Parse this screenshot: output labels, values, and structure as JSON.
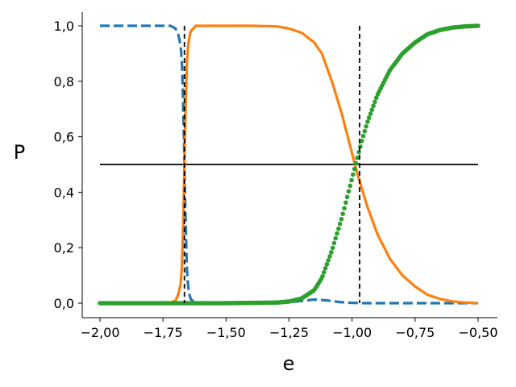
{
  "chart_data": {
    "type": "line",
    "title": "",
    "xlabel": "e",
    "ylabel": "P",
    "xlim": [
      -2.0,
      -0.5
    ],
    "ylim": [
      0.0,
      1.0
    ],
    "grid": false,
    "x_ticks": [
      -2.0,
      -1.75,
      -1.5,
      -1.25,
      -1.0,
      -0.75,
      -0.5
    ],
    "x_tick_labels": [
      "−2,00",
      "−1,75",
      "−1,50",
      "−1,25",
      "−1,00",
      "−0,75",
      "−0,50"
    ],
    "y_ticks": [
      0.0,
      0.2,
      0.4,
      0.6,
      0.8,
      1.0
    ],
    "y_tick_labels": [
      "0,0",
      "0,2",
      "0,4",
      "0,6",
      "0,8",
      "1,0"
    ],
    "series": [
      {
        "style": "dashed",
        "color": "#1f77b4",
        "x": [
          -2.0,
          -1.75,
          -1.72,
          -1.7,
          -1.69,
          -1.68,
          -1.675,
          -1.67,
          -1.665,
          -1.66,
          -1.655,
          -1.65,
          -1.645,
          -1.64,
          -1.63,
          -1.62,
          -1.6,
          -1.5,
          -1.4,
          -1.3,
          -1.25,
          -1.2,
          -1.15,
          -1.1,
          -1.05,
          -1.0,
          -0.95,
          -0.9,
          -0.75,
          -0.6,
          -0.5
        ],
        "y": [
          1.0,
          1.0,
          1.0,
          0.99,
          0.97,
          0.93,
          0.87,
          0.72,
          0.5,
          0.28,
          0.12,
          0.06,
          0.03,
          0.015,
          0.006,
          0.002,
          0.0,
          0.0,
          0.0,
          0.0,
          0.003,
          0.008,
          0.013,
          0.01,
          0.004,
          0.001,
          0.0,
          0.0,
          0.0,
          0.0,
          0.0
        ]
      },
      {
        "style": "solid",
        "color": "#ff7f0e",
        "x": [
          -2.0,
          -1.75,
          -1.72,
          -1.7,
          -1.69,
          -1.68,
          -1.675,
          -1.67,
          -1.665,
          -1.66,
          -1.655,
          -1.65,
          -1.645,
          -1.64,
          -1.63,
          -1.62,
          -1.6,
          -1.5,
          -1.4,
          -1.3,
          -1.25,
          -1.2,
          -1.15,
          -1.12,
          -1.1,
          -1.08,
          -1.06,
          -1.04,
          -1.02,
          -1.0,
          -0.98,
          -0.96,
          -0.94,
          -0.92,
          -0.9,
          -0.85,
          -0.8,
          -0.75,
          -0.7,
          -0.65,
          -0.6,
          -0.55,
          -0.5
        ],
        "y": [
          0.0,
          0.0,
          0.002,
          0.01,
          0.03,
          0.07,
          0.13,
          0.28,
          0.5,
          0.72,
          0.87,
          0.93,
          0.96,
          0.98,
          0.99,
          1.0,
          1.0,
          1.0,
          1.0,
          0.998,
          0.99,
          0.975,
          0.94,
          0.9,
          0.85,
          0.8,
          0.74,
          0.68,
          0.61,
          0.54,
          0.47,
          0.41,
          0.35,
          0.3,
          0.25,
          0.16,
          0.1,
          0.06,
          0.03,
          0.015,
          0.006,
          0.002,
          0.0
        ]
      },
      {
        "style": "dotted",
        "color": "#2ca02c",
        "x": [
          -2.0,
          -1.75,
          -1.5,
          -1.3,
          -1.25,
          -1.2,
          -1.15,
          -1.12,
          -1.1,
          -1.08,
          -1.06,
          -1.04,
          -1.02,
          -1.0,
          -0.98,
          -0.96,
          -0.94,
          -0.92,
          -0.9,
          -0.85,
          -0.8,
          -0.75,
          -0.7,
          -0.65,
          -0.6,
          -0.55,
          -0.5
        ],
        "y": [
          0.0,
          0.0,
          0.0,
          0.002,
          0.006,
          0.017,
          0.047,
          0.09,
          0.14,
          0.19,
          0.25,
          0.31,
          0.38,
          0.45,
          0.52,
          0.59,
          0.65,
          0.7,
          0.75,
          0.84,
          0.9,
          0.94,
          0.97,
          0.985,
          0.994,
          0.998,
          1.0
        ]
      }
    ],
    "reference_lines": {
      "horizontal": {
        "y": 0.5,
        "x_range": [
          -2.0,
          -0.5
        ],
        "color": "#000000",
        "style": "solid"
      },
      "vertical": [
        {
          "x": -1.665,
          "color": "#000000",
          "style": "dashed"
        },
        {
          "x": -0.97,
          "color": "#000000",
          "style": "dashed"
        }
      ]
    }
  }
}
